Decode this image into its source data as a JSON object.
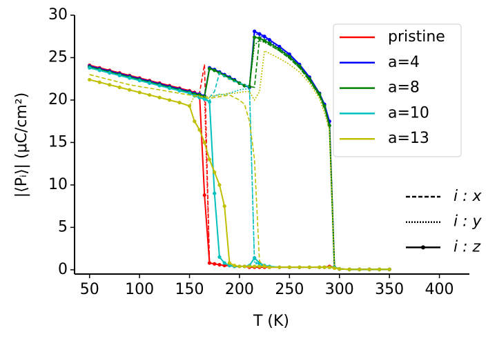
{
  "chart_data": {
    "type": "line",
    "xlabel": "T (K)",
    "ylabel": "|⟨Pᵢ⟩| (μC/cm²)",
    "x": [
      50,
      60,
      70,
      80,
      90,
      100,
      110,
      120,
      130,
      140,
      150,
      155,
      160,
      165,
      170,
      175,
      180,
      185,
      190,
      195,
      200,
      205,
      210,
      215,
      220,
      225,
      230,
      240,
      250,
      260,
      270,
      280,
      285,
      290,
      295,
      300,
      310,
      320,
      330,
      340,
      350
    ],
    "xlim": [
      35,
      430
    ],
    "xticks": [
      50,
      100,
      150,
      200,
      250,
      300,
      350,
      400
    ],
    "ylim": [
      -0.5,
      30
    ],
    "yticks": [
      0,
      5,
      10,
      15,
      20,
      25,
      30
    ],
    "legend": "upper right",
    "components": [
      {
        "name": "i : x",
        "style": "dashed"
      },
      {
        "name": "i : y",
        "style": "dotted"
      },
      {
        "name": "i : z",
        "style": "solid"
      }
    ],
    "series": [
      {
        "name": "pristine",
        "color": "#ff0000",
        "values": [
          [
            24.1,
            23.8,
            23.5,
            23.2,
            22.9,
            22.6,
            22.3,
            22.0,
            21.7,
            21.4,
            21.1,
            20.9,
            20.8,
            24.2,
            0.8,
            0.7,
            0.6,
            0.5,
            0.5,
            0.4,
            0.4,
            0.4,
            0.3,
            0.3,
            0.3,
            0.3,
            0.3,
            0.3,
            0.3,
            0.3,
            0.3,
            0.3,
            0.3,
            0.4,
            0.3,
            0.1,
            0.05,
            0.05,
            0.05,
            0.05,
            0.05
          ],
          [
            24.1,
            23.8,
            23.5,
            23.2,
            22.9,
            22.6,
            22.3,
            22.0,
            21.7,
            21.4,
            21.1,
            20.9,
            20.7,
            20.5,
            0.8,
            0.7,
            0.6,
            0.5,
            0.5,
            0.4,
            0.4,
            0.4,
            0.3,
            0.3,
            0.3,
            0.3,
            0.3,
            0.3,
            0.3,
            0.3,
            0.3,
            0.3,
            0.3,
            0.4,
            0.3,
            0.1,
            0.05,
            0.05,
            0.05,
            0.05,
            0.05
          ],
          [
            24.1,
            23.8,
            23.5,
            23.2,
            22.9,
            22.6,
            22.3,
            22.0,
            21.7,
            21.4,
            21.1,
            20.9,
            20.7,
            8.8,
            0.8,
            0.7,
            0.6,
            0.5,
            0.5,
            0.4,
            0.4,
            0.4,
            0.3,
            0.3,
            0.3,
            0.3,
            0.3,
            0.3,
            0.3,
            0.3,
            0.3,
            0.3,
            0.3,
            0.4,
            0.3,
            0.1,
            0.05,
            0.05,
            0.05,
            0.05,
            0.05
          ]
        ]
      },
      {
        "name": "a=4",
        "color": "#0000ff",
        "values": [
          [
            24.0,
            23.7,
            23.4,
            23.1,
            22.8,
            22.5,
            22.2,
            21.9,
            21.6,
            21.3,
            21.0,
            20.8,
            20.7,
            20.5,
            23.8,
            23.6,
            23.3,
            23.0,
            22.7,
            22.4,
            22.0,
            21.7,
            21.5,
            28.1,
            27.8,
            27.5,
            27.1,
            26.3,
            25.4,
            24.2,
            22.7,
            20.8,
            19.5,
            17.5,
            0.3,
            0.1,
            0.05,
            0.05,
            0.05,
            0.05,
            0.05
          ],
          [
            24.0,
            23.7,
            23.4,
            23.1,
            22.8,
            22.5,
            22.2,
            21.9,
            21.6,
            21.3,
            21.0,
            20.8,
            20.7,
            20.5,
            23.8,
            23.6,
            23.3,
            23.0,
            22.7,
            22.4,
            22.0,
            21.7,
            21.5,
            27.9,
            27.6,
            27.3,
            26.9,
            26.1,
            25.2,
            24.0,
            22.5,
            20.6,
            19.3,
            17.2,
            0.3,
            0.1,
            0.05,
            0.05,
            0.05,
            0.05,
            0.05
          ],
          [
            24.0,
            23.7,
            23.4,
            23.1,
            22.8,
            22.5,
            22.2,
            21.9,
            21.6,
            21.3,
            21.0,
            20.8,
            20.7,
            20.5,
            23.8,
            23.6,
            23.3,
            23.0,
            22.7,
            22.4,
            22.0,
            21.7,
            21.5,
            28.1,
            27.8,
            27.5,
            27.1,
            26.3,
            25.4,
            24.2,
            22.7,
            20.8,
            19.5,
            17.5,
            0.3,
            0.1,
            0.05,
            0.05,
            0.05,
            0.05,
            0.05
          ]
        ]
      },
      {
        "name": "a=8",
        "color": "#008000",
        "values": [
          [
            23.9,
            23.6,
            23.3,
            23.0,
            22.7,
            22.4,
            22.1,
            21.8,
            21.5,
            21.2,
            20.9,
            20.7,
            20.6,
            20.4,
            23.7,
            23.5,
            23.2,
            22.9,
            22.6,
            22.3,
            22.0,
            21.7,
            21.6,
            21.5,
            27.2,
            26.9,
            26.5,
            25.8,
            24.9,
            23.8,
            22.3,
            20.5,
            19.1,
            16.8,
            0.3,
            0.1,
            0.05,
            0.05,
            0.05,
            0.05,
            0.05
          ],
          [
            23.9,
            23.6,
            23.3,
            23.0,
            22.7,
            22.4,
            22.1,
            21.8,
            21.5,
            21.2,
            20.9,
            20.7,
            20.6,
            20.4,
            23.7,
            23.5,
            23.2,
            22.9,
            22.6,
            22.3,
            22.0,
            21.7,
            21.6,
            26.5,
            27.0,
            26.8,
            26.5,
            25.8,
            24.9,
            23.8,
            22.3,
            20.5,
            19.1,
            16.8,
            0.3,
            0.1,
            0.05,
            0.05,
            0.05,
            0.05,
            0.05
          ],
          [
            23.9,
            23.6,
            23.3,
            23.0,
            22.7,
            22.4,
            22.1,
            21.8,
            21.5,
            21.2,
            20.9,
            20.7,
            20.6,
            20.4,
            23.7,
            23.5,
            23.2,
            22.9,
            22.6,
            22.3,
            22.0,
            21.7,
            21.6,
            27.4,
            27.3,
            27.0,
            26.7,
            26.0,
            25.1,
            24.0,
            22.5,
            20.7,
            19.3,
            17.0,
            0.3,
            0.1,
            0.05,
            0.05,
            0.05,
            0.05,
            0.05
          ]
        ]
      },
      {
        "name": "a=10",
        "color": "#00bfbf",
        "values": [
          [
            23.8,
            23.5,
            23.2,
            22.9,
            22.6,
            22.3,
            22.0,
            21.7,
            21.4,
            21.1,
            20.8,
            20.5,
            20.3,
            20.1,
            20.3,
            21.0,
            23.2,
            22.8,
            22.5,
            22.2,
            22.0,
            21.8,
            21.5,
            1.0,
            0.6,
            0.4,
            0.3,
            0.3,
            0.3,
            0.3,
            0.3,
            0.3,
            0.3,
            0.3,
            0.3,
            0.1,
            0.05,
            0.05,
            0.05,
            0.05,
            0.05
          ],
          [
            23.8,
            23.5,
            23.2,
            22.9,
            22.6,
            22.3,
            22.0,
            21.7,
            21.4,
            21.1,
            20.8,
            20.5,
            20.3,
            20.1,
            20.0,
            20.5,
            20.7,
            20.6,
            20.8,
            21.0,
            21.2,
            21.3,
            21.3,
            0.8,
            0.5,
            0.4,
            0.3,
            0.3,
            0.3,
            0.3,
            0.3,
            0.3,
            0.3,
            0.3,
            0.3,
            0.1,
            0.05,
            0.05,
            0.05,
            0.05,
            0.05
          ],
          [
            23.8,
            23.5,
            23.2,
            22.9,
            22.6,
            22.3,
            22.0,
            21.7,
            21.4,
            21.1,
            20.8,
            20.5,
            20.3,
            20.1,
            19.8,
            9.0,
            1.5,
            0.8,
            0.5,
            0.4,
            0.4,
            0.4,
            0.5,
            1.4,
            0.8,
            0.5,
            0.4,
            0.3,
            0.3,
            0.3,
            0.3,
            0.3,
            0.3,
            0.3,
            0.3,
            0.1,
            0.05,
            0.05,
            0.05,
            0.05,
            0.05
          ]
        ]
      },
      {
        "name": "a=13",
        "color": "#bfbf00",
        "values": [
          [
            23.0,
            22.7,
            22.4,
            22.1,
            21.8,
            21.6,
            21.4,
            21.2,
            21.0,
            20.8,
            20.6,
            20.5,
            20.4,
            20.3,
            20.2,
            20.3,
            20.4,
            20.5,
            20.6,
            20.3,
            20.0,
            19.5,
            17.5,
            13.0,
            1.0,
            0.5,
            0.3,
            0.3,
            0.3,
            0.3,
            0.3,
            0.3,
            0.3,
            0.3,
            0.3,
            0.1,
            0.05,
            0.05,
            0.05,
            0.05,
            0.05
          ],
          [
            22.4,
            22.1,
            21.8,
            21.5,
            21.2,
            20.9,
            20.6,
            20.3,
            20.0,
            19.7,
            19.3,
            20.5,
            20.5,
            20.4,
            20.4,
            20.5,
            20.6,
            20.7,
            20.8,
            20.8,
            20.9,
            21.0,
            21.0,
            20.0,
            21.0,
            25.8,
            25.5,
            24.9,
            24.2,
            23.3,
            22.0,
            20.2,
            18.5,
            16.5,
            0.3,
            0.1,
            0.05,
            0.05,
            0.05,
            0.05,
            0.05
          ],
          [
            22.4,
            22.1,
            21.8,
            21.5,
            21.2,
            20.9,
            20.6,
            20.3,
            20.0,
            19.7,
            19.3,
            17.5,
            16.5,
            15.0,
            13.0,
            11.5,
            10.0,
            7.5,
            0.8,
            0.5,
            0.4,
            0.4,
            0.4,
            0.4,
            0.4,
            0.4,
            0.3,
            0.3,
            0.3,
            0.3,
            0.3,
            0.3,
            0.3,
            0.3,
            0.2,
            0.1,
            0.05,
            0.05,
            0.05,
            0.05,
            0.05
          ]
        ]
      }
    ]
  }
}
